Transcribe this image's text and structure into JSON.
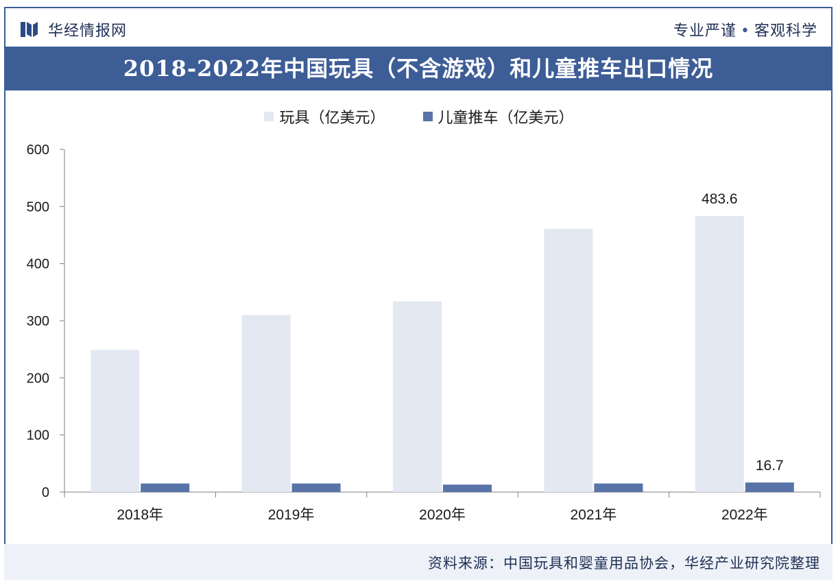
{
  "header": {
    "brand": "华经情报网",
    "slogan_left": "专业严谨",
    "slogan_dot": "•",
    "slogan_right": "客观科学"
  },
  "title": "2018-2022年中国玩具（不含游戏）和儿童推车出口情况",
  "source": "资料来源：中国玩具和婴童用品协会，华经产业研究院整理",
  "colors": {
    "title_band": "#3d5d97",
    "toys": "#e3e8f2",
    "strollers": "#5873a8",
    "text": "#1f2f55"
  },
  "chart_data": {
    "type": "bar",
    "title": "2018-2022年中国玩具（不含游戏）和儿童推车出口情况",
    "categories": [
      "2018年",
      "2019年",
      "2020年",
      "2021年",
      "2022年"
    ],
    "series": [
      {
        "name": "玩具（亿美元）",
        "values": [
          249,
          310,
          334,
          461,
          483.6
        ]
      },
      {
        "name": "儿童推车（亿美元）",
        "values": [
          15,
          15,
          13,
          15,
          16.7
        ]
      }
    ],
    "data_labels": [
      {
        "series": 0,
        "index": 4,
        "text": "483.6"
      },
      {
        "series": 1,
        "index": 4,
        "text": "16.7"
      }
    ],
    "yticks": [
      "0",
      "100",
      "200",
      "300",
      "400",
      "500",
      "600"
    ],
    "ylim": [
      0,
      600
    ],
    "xlabel": "",
    "ylabel": "",
    "legend_position": "top-center",
    "grid": false
  }
}
